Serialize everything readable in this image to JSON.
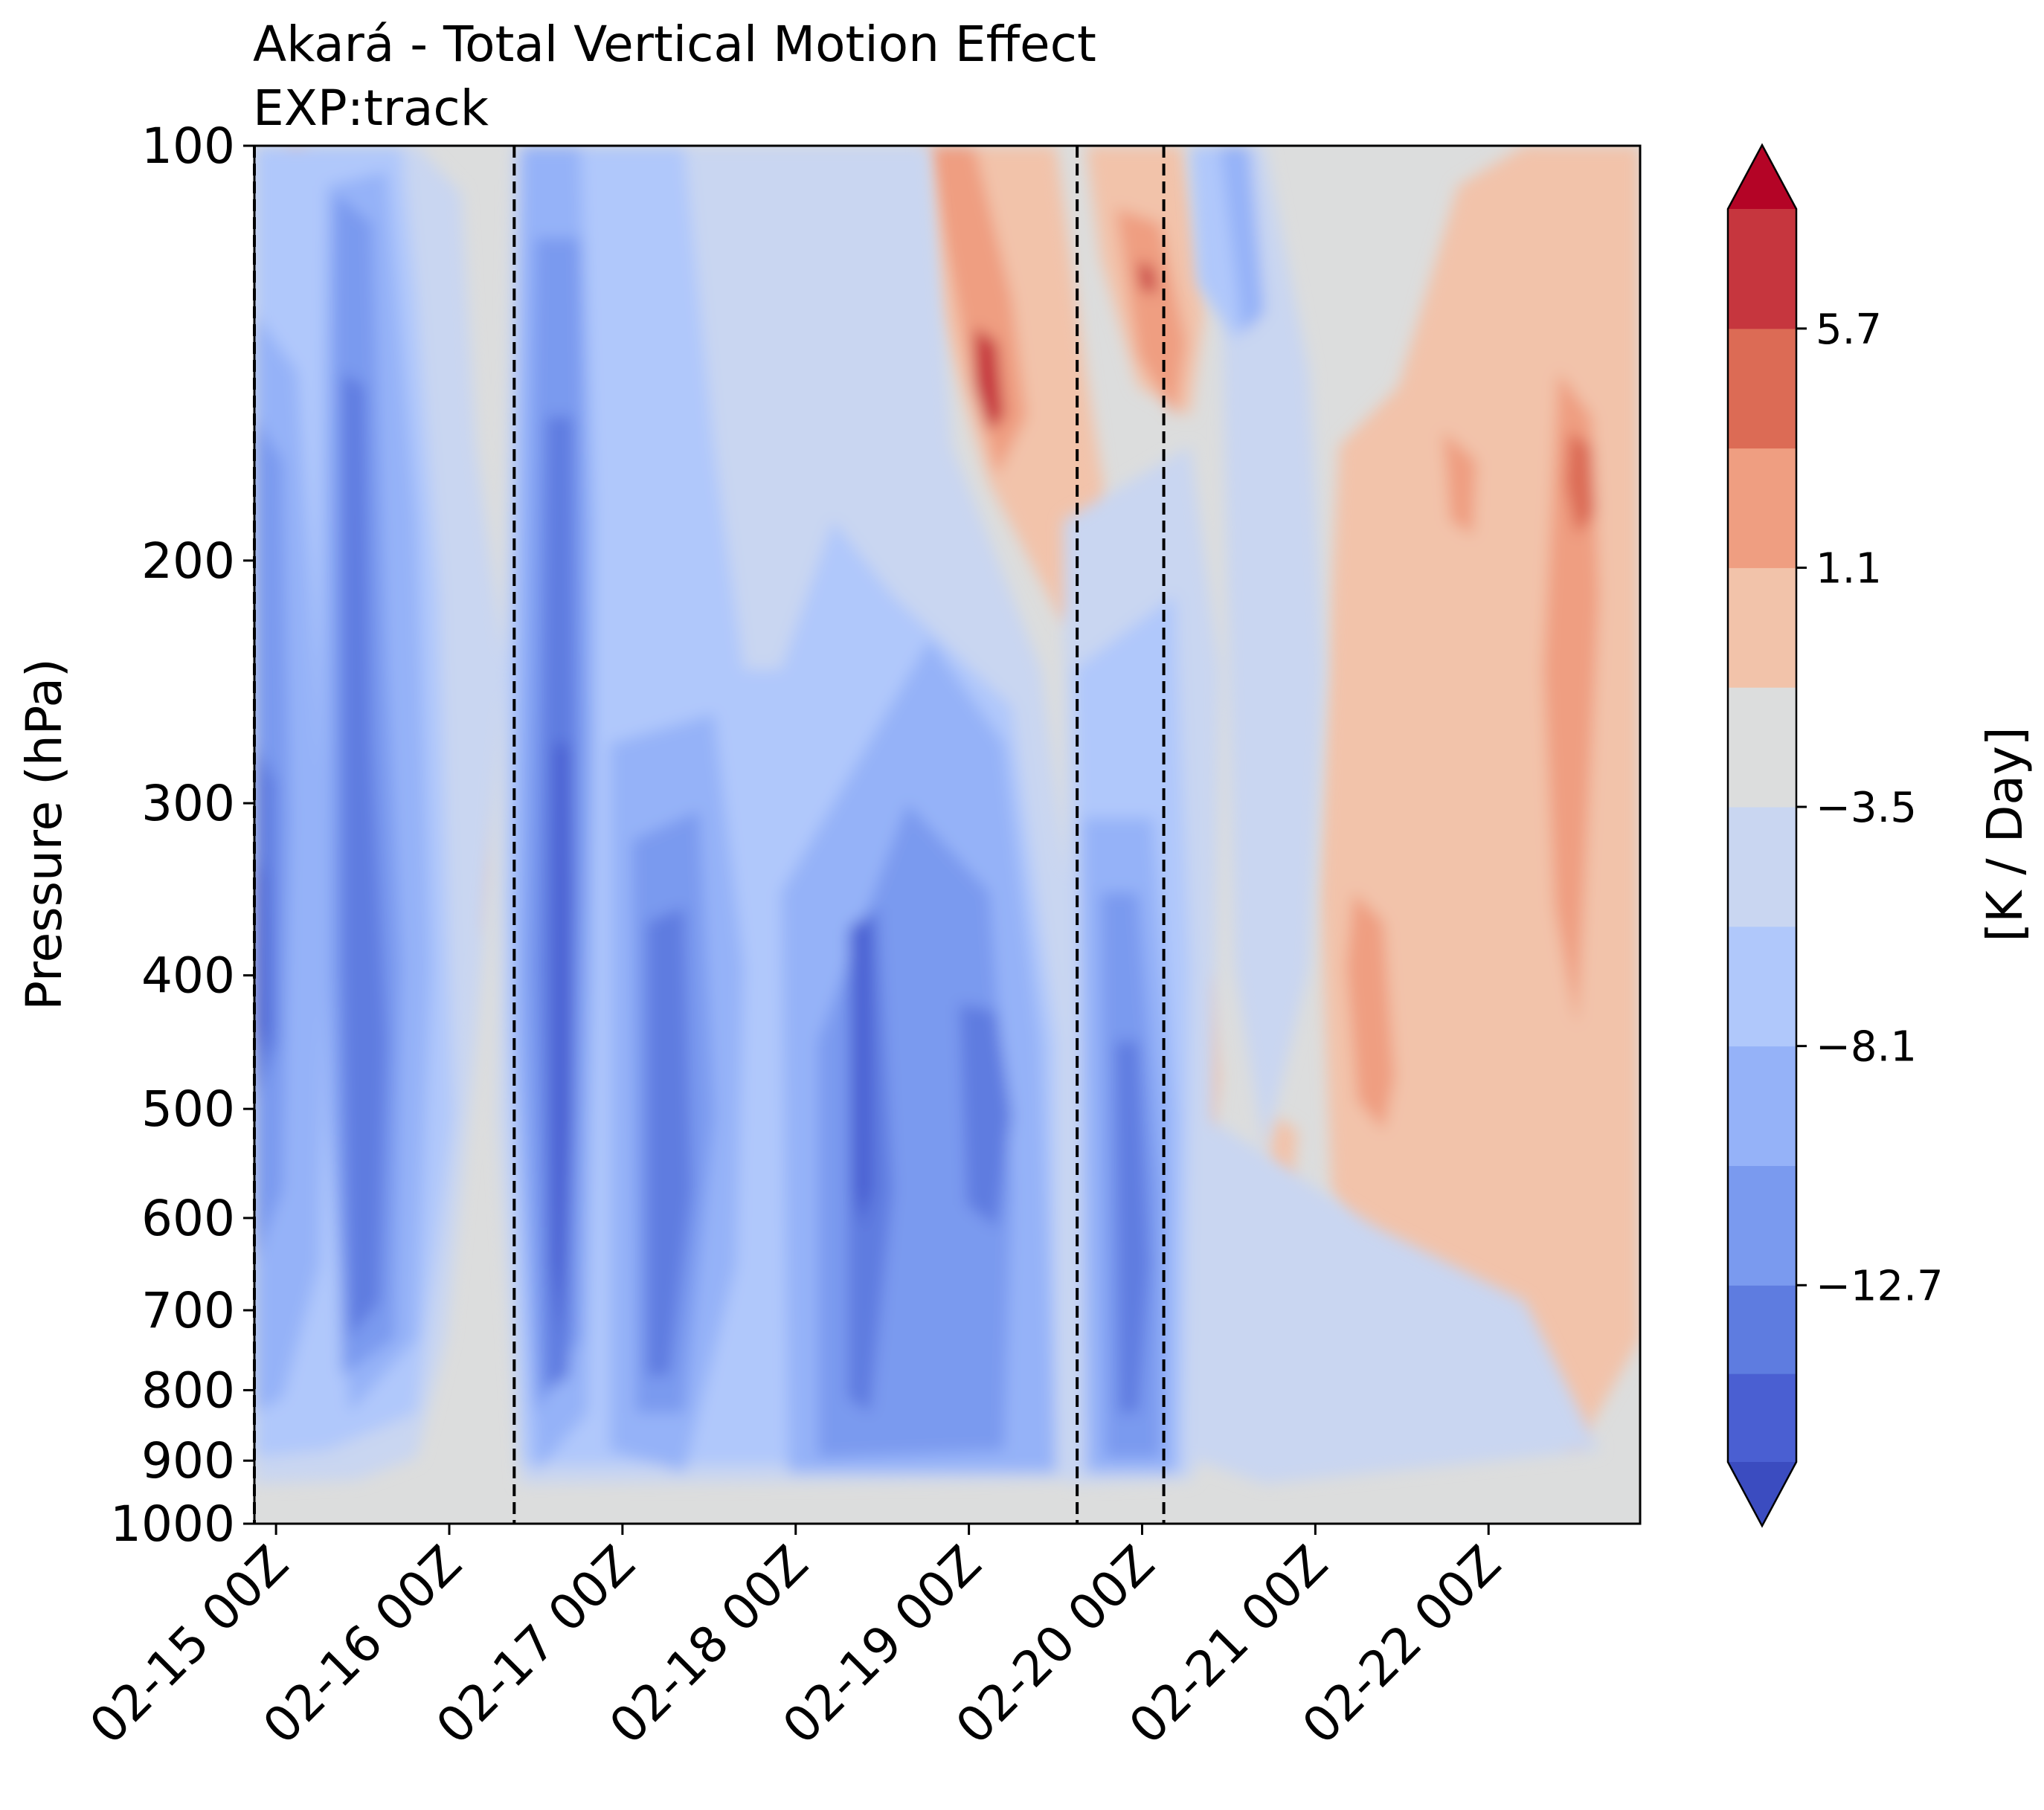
{
  "chart_data": {
    "type": "heatmap",
    "title": "Akará - Total Vertical Motion Effect",
    "subtitle": "EXP:track",
    "ylabel": "Pressure (hPa)",
    "xlabel": "",
    "y_scale": "log",
    "y_inverted": true,
    "ylim": [
      1000,
      100
    ],
    "y_ticks": [
      {
        "value": 100,
        "label": "100"
      },
      {
        "value": 200,
        "label": "200"
      },
      {
        "value": 300,
        "label": "300"
      },
      {
        "value": 400,
        "label": "400"
      },
      {
        "value": 500,
        "label": "500"
      },
      {
        "value": 600,
        "label": "600"
      },
      {
        "value": 700,
        "label": "700"
      },
      {
        "value": 800,
        "label": "800"
      },
      {
        "value": 900,
        "label": "900"
      },
      {
        "value": 1000,
        "label": "1000"
      }
    ],
    "xlim": [
      "2024-02-14T21:00",
      "2024-02-22T21:00"
    ],
    "x_ticks": [
      {
        "value": "2024-02-15T00:00",
        "label": "02-15 00Z"
      },
      {
        "value": "2024-02-16T00:00",
        "label": "02-16 00Z"
      },
      {
        "value": "2024-02-17T00:00",
        "label": "02-17 00Z"
      },
      {
        "value": "2024-02-18T00:00",
        "label": "02-18 00Z"
      },
      {
        "value": "2024-02-19T00:00",
        "label": "02-19 00Z"
      },
      {
        "value": "2024-02-20T00:00",
        "label": "02-20 00Z"
      },
      {
        "value": "2024-02-21T00:00",
        "label": "02-21 00Z"
      },
      {
        "value": "2024-02-22T00:00",
        "label": "02-22 00Z"
      }
    ],
    "vertical_lines": [
      "2024-02-14T21:00",
      "2024-02-16T09:00",
      "2024-02-19T15:00",
      "2024-02-20T03:00"
    ],
    "colorbar": {
      "label": "[K / Day]",
      "levels": [
        -16.1,
        -14.4,
        -12.7,
        -10.4,
        -8.1,
        -5.8,
        -3.5,
        -1.2,
        1.1,
        3.4,
        5.7,
        8.0
      ],
      "colors": [
        "#4a5fd2",
        "#5e7ce0",
        "#7a9aef",
        "#95b2f8",
        "#b0c8fb",
        "#c9d6f1",
        "#dcdddd",
        "#f2c3aa",
        "#ef9e81",
        "#dc6b55",
        "#c6363e"
      ],
      "extend_colors": {
        "min": "#3b4cc0",
        "max": "#b40426"
      },
      "tick_values": [
        5.7,
        1.1,
        -3.5,
        -8.1,
        -12.7
      ],
      "tick_labels": [
        "5.7",
        "1.1",
        "−3.5",
        "−8.1",
        "−12.7"
      ]
    },
    "grid": false,
    "legend": "none"
  }
}
